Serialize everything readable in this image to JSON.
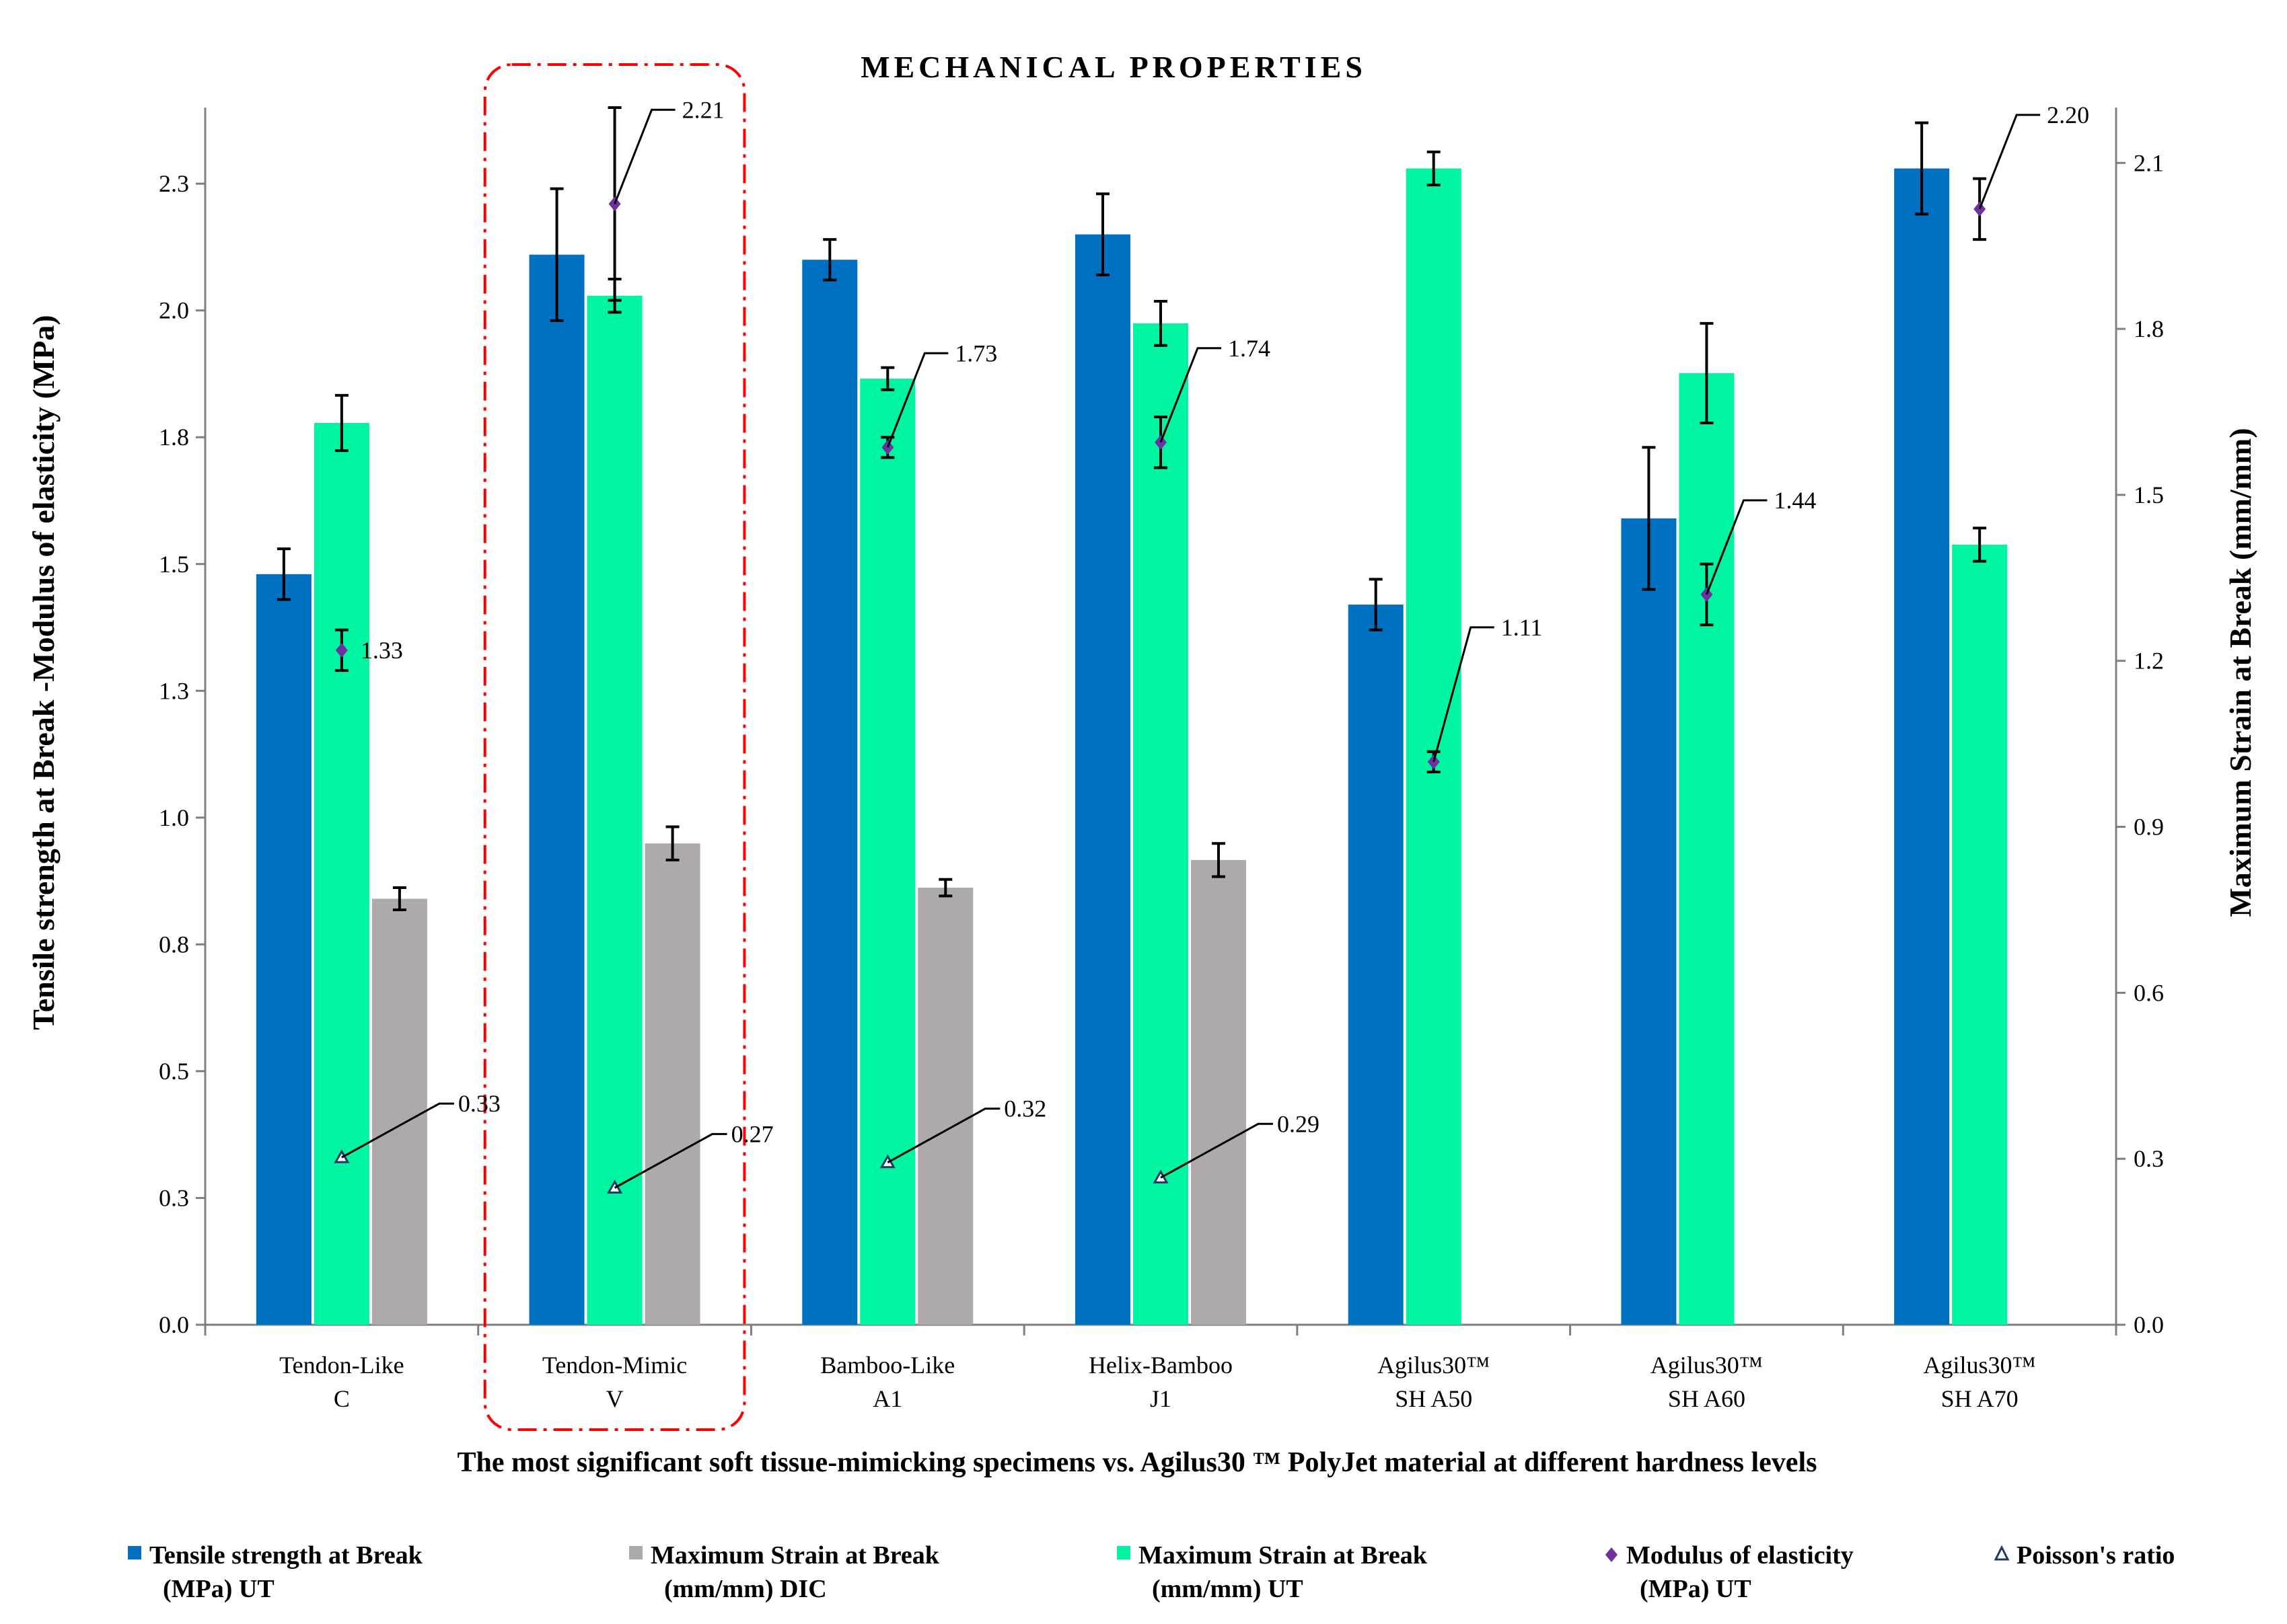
{
  "chart_data": {
    "type": "bar",
    "title": "MECHANICAL PROPERTIES",
    "xlabel": "The most significant soft tissue-mimicking specimens vs. Agilus30 ™ PolyJet material at different hardness levels",
    "ylabel_left": "Tensile strength at Break -Modulus of elasticity  (MPa)",
    "ylabel_right": "Maximum Strain at Break  (mm/mm)",
    "ylim_left": [
      0,
      2.4
    ],
    "ylim_right": [
      0,
      2.2
    ],
    "left_ticks": [
      "0.0",
      "0.3",
      "0.5",
      "0.8",
      "1.0",
      "1.3",
      "1.5",
      "1.8",
      "2.0",
      "2.3"
    ],
    "right_ticks": [
      "0.0",
      "0.3",
      "0.6",
      "0.9",
      "1.2",
      "1.5",
      "1.8",
      "2.1"
    ],
    "categories": [
      {
        "line1": "Tendon-Like",
        "line2": "C"
      },
      {
        "line1": "Tendon-Mimic",
        "line2": "V"
      },
      {
        "line1": "Bamboo-Like",
        "line2": "A1"
      },
      {
        "line1": "Helix-Bamboo",
        "line2": "J1"
      },
      {
        "line1": "Agilus30™",
        "line2": "SH A50"
      },
      {
        "line1": "Agilus30™",
        "line2": "SH A60"
      },
      {
        "line1": "Agilus30™",
        "line2": "SH A70"
      }
    ],
    "highlighted_category": 1,
    "series": [
      {
        "name": "Tensile strength at Break (MPa) UT",
        "legend_line1": "Tensile strength at Break",
        "legend_line2": "(MPa) UT",
        "axis": "left",
        "color": "#0070C0",
        "values": [
          1.48,
          2.11,
          2.1,
          2.15,
          1.42,
          1.59,
          2.28
        ],
        "errors": [
          0.05,
          0.13,
          0.04,
          0.08,
          0.05,
          0.14,
          0.09
        ]
      },
      {
        "name": "Maximum Strain at Break (mm/mm) UT",
        "legend_line1": "Maximum Strain at Break",
        "legend_line2": "(mm/mm) UT",
        "axis": "right",
        "color": "#00F5A0",
        "values": [
          1.63,
          1.86,
          1.71,
          1.81,
          2.09,
          1.72,
          1.41
        ],
        "errors": [
          0.05,
          0.03,
          0.02,
          0.04,
          0.03,
          0.09,
          0.03
        ]
      },
      {
        "name": "Maximum Strain at Break (mm/mm) DIC",
        "legend_line1": "Maximum Strain at Break",
        "legend_line2": "(mm/mm) DIC",
        "axis": "right",
        "color": "#AEAAAA",
        "values": [
          0.77,
          0.87,
          0.79,
          0.84,
          null,
          null,
          null
        ],
        "errors": [
          0.02,
          0.03,
          0.015,
          0.03,
          null,
          null,
          null
        ]
      },
      {
        "name": "Modulus of elasticity (MPa) UT",
        "legend_line1": "Modulus of elasticity",
        "legend_line2": "(MPa) UT",
        "axis": "left",
        "color": "#7030A0",
        "marker": "diamond",
        "values": [
          1.33,
          2.21,
          1.73,
          1.74,
          1.11,
          1.44,
          2.2
        ],
        "errors": [
          0.04,
          0.19,
          0.02,
          0.05,
          0.02,
          0.06,
          0.06
        ],
        "labels": [
          "1.33",
          "2.21",
          "1.73",
          "1.74",
          "1.11",
          "1.44",
          "2.20"
        ]
      },
      {
        "name": "Poisson's ratio",
        "legend_line1": "Poisson's ratio",
        "legend_line2": "",
        "axis": "left",
        "color": "#1F3864",
        "marker": "triangle",
        "values": [
          0.33,
          0.27,
          0.32,
          0.29,
          null,
          null,
          null
        ],
        "labels": [
          "0.33",
          "0.27",
          "0.32",
          "0.29",
          "",
          "",
          ""
        ]
      }
    ]
  }
}
